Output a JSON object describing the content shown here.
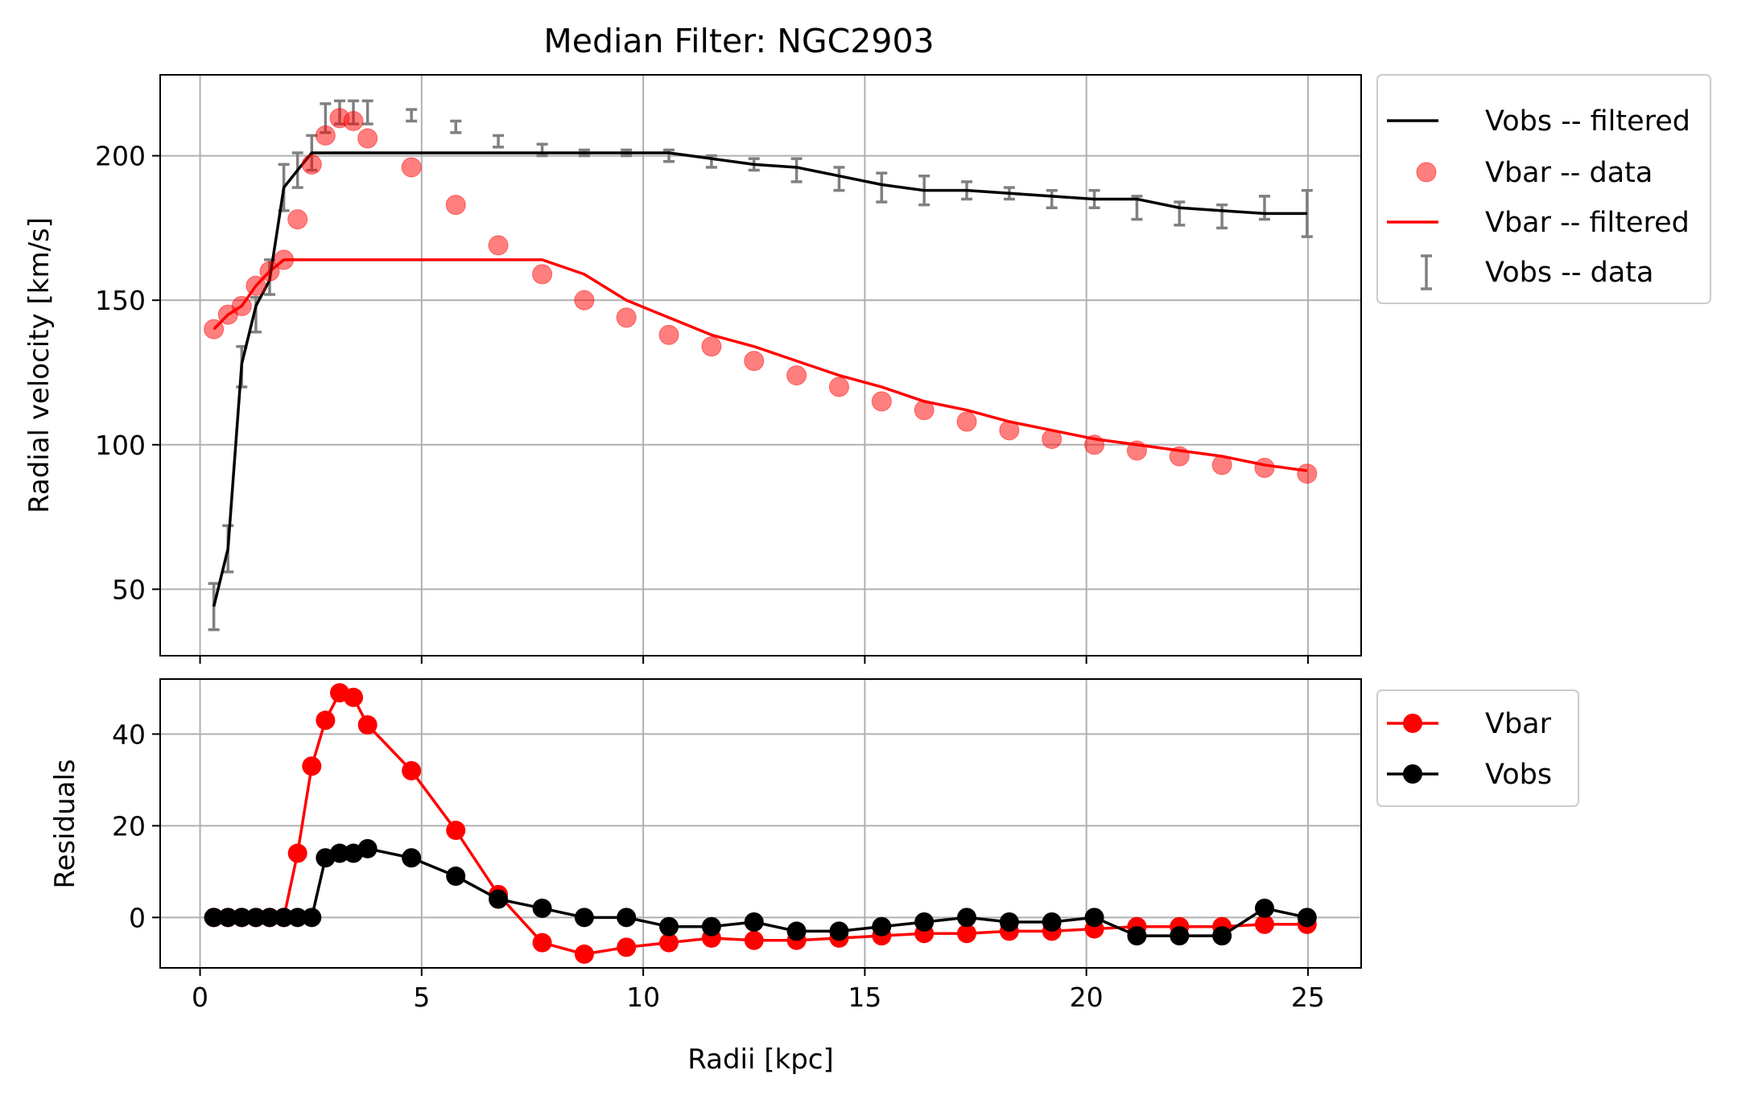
{
  "chart_data": [
    {
      "type": "line",
      "title": "Median Filter: NGC2903",
      "xlabel": "",
      "ylabel": "Radial velocity [km/s]",
      "xlim": [
        -0.9,
        26.2
      ],
      "ylim": [
        27,
        228
      ],
      "xticks": [
        0,
        5,
        10,
        15,
        20,
        25
      ],
      "xtick_labels_shown": false,
      "yticks": [
        50,
        100,
        150,
        200
      ],
      "grid": true,
      "legend_placement": "outside-right-top",
      "x": [
        0.31,
        0.63,
        0.94,
        1.26,
        1.57,
        1.89,
        2.2,
        2.52,
        2.83,
        3.15,
        3.46,
        3.78,
        4.77,
        5.77,
        6.73,
        7.72,
        8.67,
        9.62,
        10.58,
        11.54,
        12.5,
        13.46,
        14.42,
        15.38,
        16.34,
        17.3,
        18.26,
        19.22,
        20.18,
        21.14,
        22.1,
        23.06,
        24.02,
        24.98
      ],
      "series": [
        {
          "name": "Vobs -- filtered",
          "kind": "line",
          "color": "#000000",
          "values": [
            44,
            64,
            128,
            148,
            157,
            189,
            195,
            201,
            201,
            201,
            201,
            201,
            201,
            201,
            201,
            201,
            201,
            201,
            201,
            199,
            197,
            196,
            193,
            190,
            188,
            188,
            187,
            186,
            185,
            185,
            182,
            181,
            180,
            180
          ]
        },
        {
          "name": "Vbar -- data",
          "kind": "scatter",
          "color": "#ff0000",
          "values": [
            140,
            145,
            148,
            155,
            160,
            164,
            178,
            197,
            207,
            213,
            212,
            206,
            196,
            183,
            169,
            159,
            150,
            144,
            138,
            134,
            129,
            124,
            120,
            115,
            112,
            108,
            105,
            102,
            100,
            98,
            96,
            93,
            92,
            90
          ]
        },
        {
          "name": "Vbar -- filtered",
          "kind": "line",
          "color": "#ff0000",
          "values": [
            140,
            145,
            148,
            155,
            160,
            164,
            164,
            164,
            164,
            164,
            164,
            164,
            164,
            164,
            164,
            164,
            159,
            150,
            144,
            138,
            134,
            129,
            124,
            120,
            115,
            112,
            108,
            105,
            102,
            100,
            98,
            96,
            93,
            91
          ]
        },
        {
          "name": "Vobs -- data",
          "kind": "errorbar",
          "color": "#808080",
          "values": [
            44,
            64,
            127,
            145,
            158,
            189,
            195,
            201,
            213,
            215,
            215,
            215,
            214,
            210,
            205,
            202,
            201,
            201,
            200,
            198,
            197,
            195,
            192,
            189,
            188,
            188,
            187,
            185,
            185,
            182,
            180,
            179,
            182,
            180
          ],
          "errors": [
            8,
            8,
            7,
            6,
            6,
            8,
            6,
            6,
            5,
            4,
            4,
            4,
            2,
            2,
            2,
            2,
            1,
            1,
            2,
            2,
            2,
            4,
            4,
            5,
            5,
            3,
            2,
            3,
            3,
            4,
            4,
            4,
            4,
            8
          ]
        }
      ]
    },
    {
      "type": "line",
      "title": "",
      "xlabel": "Radii [kpc]",
      "ylabel": "Residuals",
      "xlim": [
        -0.9,
        26.2
      ],
      "ylim": [
        -11,
        52
      ],
      "xticks": [
        0,
        5,
        10,
        15,
        20,
        25
      ],
      "yticks": [
        0,
        20,
        40
      ],
      "grid": true,
      "legend_placement": "outside-right-top",
      "x": [
        0.31,
        0.63,
        0.94,
        1.26,
        1.57,
        1.89,
        2.2,
        2.52,
        2.83,
        3.15,
        3.46,
        3.78,
        4.77,
        5.77,
        6.73,
        7.72,
        8.67,
        9.62,
        10.58,
        11.54,
        12.5,
        13.46,
        14.42,
        15.38,
        16.34,
        17.3,
        18.26,
        19.22,
        20.18,
        21.14,
        22.1,
        23.06,
        24.02,
        24.98
      ],
      "series": [
        {
          "name": "Vbar",
          "color": "#ff0000",
          "values": [
            0,
            0,
            0,
            0,
            0,
            0,
            14,
            33,
            43,
            49,
            48,
            42,
            32,
            19,
            5,
            -5.5,
            -8,
            -6.5,
            -5.5,
            -4.5,
            -5,
            -5,
            -4.5,
            -4,
            -3.5,
            -3.5,
            -3,
            -3,
            -2.5,
            -2,
            -2,
            -2,
            -1.5,
            -1.5
          ]
        },
        {
          "name": "Vobs",
          "color": "#000000",
          "values": [
            0,
            0,
            0,
            0,
            0,
            0,
            0,
            0,
            13,
            14,
            14,
            15,
            13,
            9,
            4,
            2,
            0,
            0,
            -2,
            -2,
            -1,
            -3,
            -3,
            -2,
            -1,
            0,
            -1,
            -1,
            0,
            -4,
            -4,
            -4,
            2,
            0
          ]
        }
      ]
    }
  ]
}
